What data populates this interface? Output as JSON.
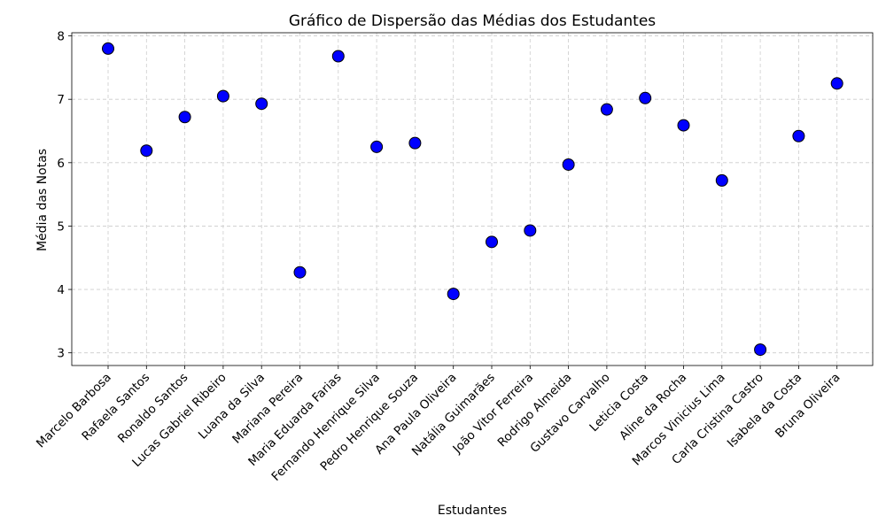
{
  "colors": {
    "marker_fill": "#0000ff",
    "marker_edge": "#000000",
    "grid": "#cccccc"
  },
  "chart_data": {
    "type": "scatter",
    "title": "Gráfico de Dispersão das Médias dos Estudantes",
    "xlabel": "Estudantes",
    "ylabel": "Média das Notas",
    "ylim": [
      2.8,
      8.05
    ],
    "yticks": [
      3,
      4,
      5,
      6,
      7,
      8
    ],
    "grid": true,
    "categories": [
      "Marcelo Barbosa",
      "Rafaela Santos",
      "Ronaldo Santos",
      "Lucas Gabriel Ribeiro",
      "Luana da Silva",
      "Mariana Pereira",
      "Maria Eduarda Farias",
      "Fernando Henrique Silva",
      "Pedro Henrique Souza",
      "Ana Paula Oliveira",
      "Natália Guimarães",
      "João Vitor Ferreira",
      "Rodrigo Almeida",
      "Gustavo Carvalho",
      "Leticia Costa",
      "Aline da Rocha",
      "Marcos Vinicius Lima",
      "Carla Cristina Castro",
      "Isabela da Costa",
      "Bruna Oliveira"
    ],
    "values": [
      7.8,
      6.19,
      6.72,
      7.05,
      6.93,
      4.27,
      7.68,
      6.25,
      6.31,
      3.93,
      4.75,
      4.93,
      5.97,
      6.84,
      7.02,
      6.59,
      5.72,
      3.05,
      6.42,
      7.25
    ]
  }
}
